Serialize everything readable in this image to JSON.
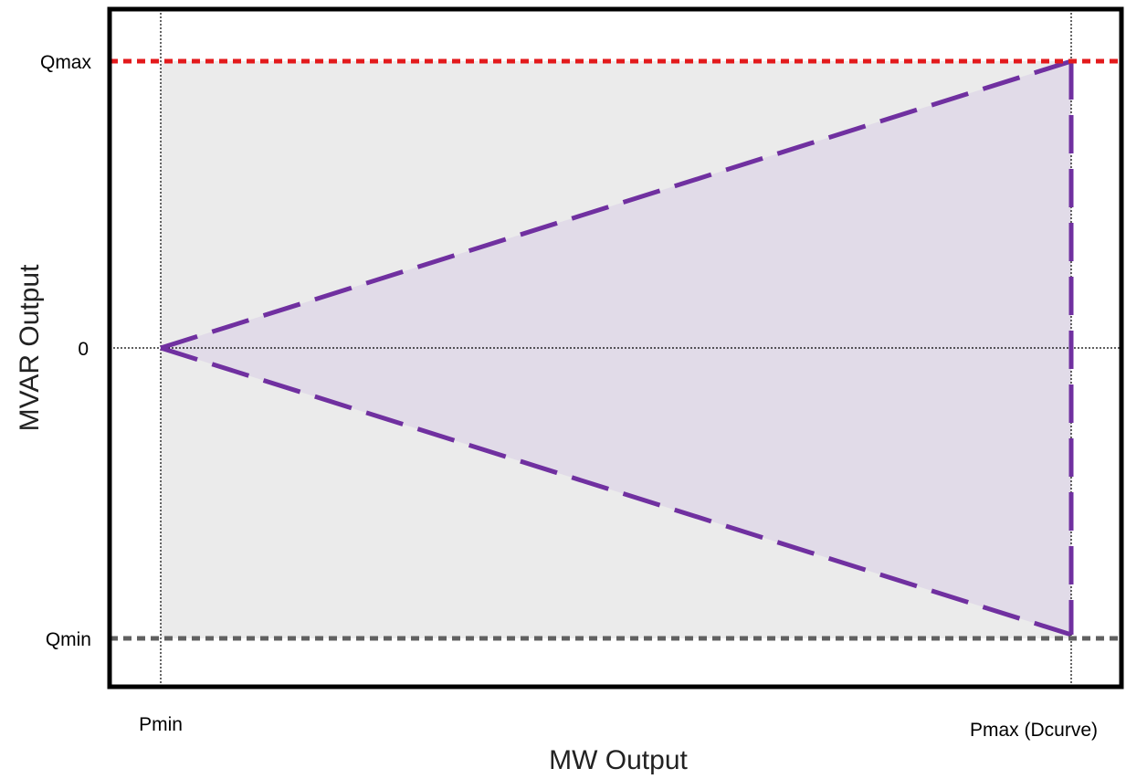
{
  "diagram": {
    "y_axis_title": "MVAR Output",
    "x_axis_title": "MW Output",
    "y_labels": {
      "qmax": "Qmax",
      "zero": "0",
      "qmin": "Qmin"
    },
    "x_labels": {
      "pmin": "Pmin",
      "pmax": "Pmax (Dcurve)"
    }
  },
  "colors": {
    "frame": "#000000",
    "operating_region_fill": "#ebebeb",
    "capability_fill": "#e1dbe8",
    "capability_stroke": "#7030a0",
    "qmax_line": "#e31a1c",
    "qmin_line": "#606060",
    "guide_line": "#000000"
  }
}
